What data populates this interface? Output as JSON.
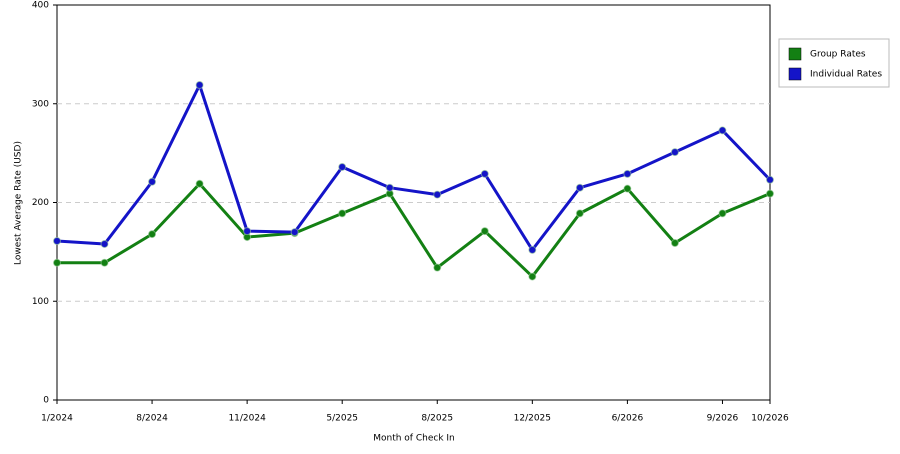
{
  "chart_data": {
    "type": "line",
    "x_label": "Month of Check In",
    "y_label": "Lowest Average Rate (USD)",
    "categories": [
      "1/2024",
      null,
      "8/2024",
      null,
      "11/2024",
      null,
      "5/2025",
      null,
      "8/2025",
      null,
      "12/2025",
      null,
      "6/2026",
      null,
      "9/2026",
      "10/2026"
    ],
    "series": [
      {
        "name": "Group Rates",
        "color": "#138013",
        "values": [
          139,
          139,
          168,
          219,
          165,
          169,
          189,
          209,
          134,
          171,
          125,
          189,
          214,
          159,
          189,
          209
        ]
      },
      {
        "name": "Individual Rates",
        "color": "#1414c8",
        "values": [
          161,
          158,
          221,
          319,
          171,
          170,
          236,
          215,
          208,
          229,
          152,
          215,
          229,
          251,
          273,
          223
        ]
      }
    ],
    "ylim": [
      0,
      400
    ],
    "yticks": [
      0,
      100,
      200,
      300,
      400
    ],
    "grid": true,
    "legend": "right"
  }
}
